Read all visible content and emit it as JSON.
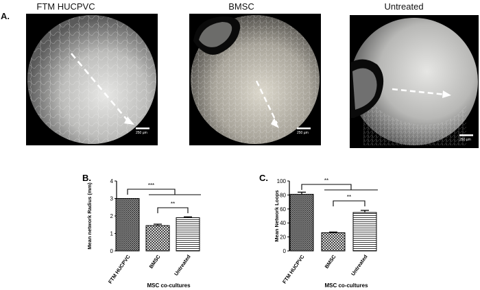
{
  "panel_a": {
    "label": "A.",
    "images": [
      {
        "title": "FTM HUCPVC",
        "scale_label": "250 µm"
      },
      {
        "title": "BMSC",
        "scale_label": "250 µm"
      },
      {
        "title": "Untreated",
        "scale_label": "250 µm"
      }
    ]
  },
  "chart_data": [
    {
      "panel": "B.",
      "type": "bar",
      "categories": [
        "FTM HUCPVC",
        "BMSC",
        "Untreated"
      ],
      "values": [
        3.0,
        1.45,
        1.9
      ],
      "errors": [
        0.0,
        0.08,
        0.05
      ],
      "ylabel": "Mean network Radius (mm)",
      "xlabel": "MSC co-cultures",
      "ylim": [
        0,
        4
      ],
      "yticks": [
        "0",
        "1",
        "2",
        "3",
        "4"
      ],
      "yticks_values": [
        0,
        1,
        2,
        3,
        4
      ],
      "significance": [
        {
          "label": "***",
          "from": "FTM HUCPVC",
          "to": "BMSC + Untreated"
        },
        {
          "label": "**",
          "from": "BMSC",
          "to": "Untreated"
        }
      ],
      "grid": false
    },
    {
      "panel": "C.",
      "type": "bar",
      "categories": [
        "FTM HUCPVC",
        "BMSC",
        "Untreated"
      ],
      "values": [
        81,
        26,
        55
      ],
      "errors": [
        3,
        1,
        3
      ],
      "ylabel": "Mean  Network Loops",
      "xlabel": "MSC co-cultures",
      "ylim": [
        0,
        100
      ],
      "yticks": [
        "0",
        "20",
        "40",
        "60",
        "80",
        "100"
      ],
      "yticks_values": [
        0,
        20,
        40,
        60,
        80,
        100
      ],
      "significance": [
        {
          "label": "**",
          "from": "FTM HUCPVC",
          "to": "BMSC + Untreated"
        },
        {
          "label": "**",
          "from": "BMSC",
          "to": "Untreated"
        }
      ],
      "grid": false
    }
  ]
}
